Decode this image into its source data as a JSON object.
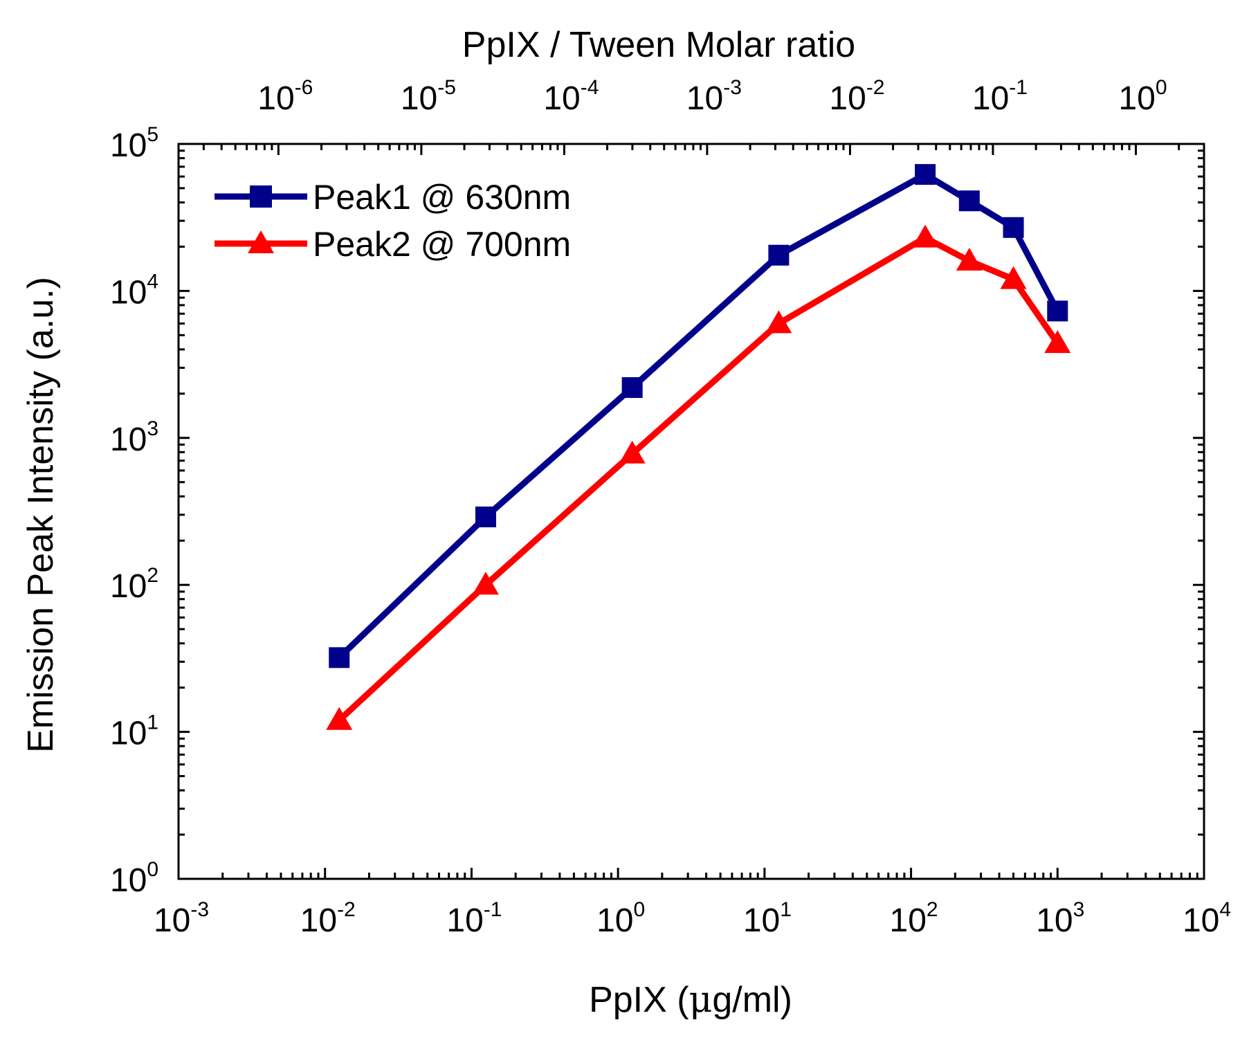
{
  "chart_data": {
    "type": "line",
    "x_scale": "log",
    "y_scale": "log",
    "xlabel_prefix": "PpIX (",
    "xlabel_mu": "μ",
    "xlabel_suffix": "g/ml)",
    "ylabel": "Emission Peak Intensity (a.u.)",
    "top_xlabel": "PpIX / Tween Molar ratio",
    "xlim": [
      0.001,
      10000
    ],
    "ylim": [
      1,
      100000
    ],
    "x_ticks": [
      {
        "base": "10",
        "exp": "-3"
      },
      {
        "base": "10",
        "exp": "-2"
      },
      {
        "base": "10",
        "exp": "-1"
      },
      {
        "base": "10",
        "exp": "0"
      },
      {
        "base": "10",
        "exp": "1"
      },
      {
        "base": "10",
        "exp": "2"
      },
      {
        "base": "10",
        "exp": "3"
      },
      {
        "base": "10",
        "exp": "4"
      }
    ],
    "y_ticks": [
      {
        "base": "10",
        "exp": "0"
      },
      {
        "base": "10",
        "exp": "1"
      },
      {
        "base": "10",
        "exp": "2"
      },
      {
        "base": "10",
        "exp": "3"
      },
      {
        "base": "10",
        "exp": "4"
      },
      {
        "base": "10",
        "exp": "5"
      }
    ],
    "top_xlim": [
      2e-07,
      3
    ],
    "top_x_ticks": [
      {
        "base": "10",
        "exp": "-6"
      },
      {
        "base": "10",
        "exp": "-5"
      },
      {
        "base": "10",
        "exp": "-4"
      },
      {
        "base": "10",
        "exp": "-3"
      },
      {
        "base": "10",
        "exp": "-2"
      },
      {
        "base": "10",
        "exp": "-1"
      },
      {
        "base": "10",
        "exp": "0"
      }
    ],
    "x": [
      0.0125,
      0.125,
      1.25,
      12.5,
      125,
      250,
      500,
      1000
    ],
    "series": [
      {
        "name": "Peak1 @ 630nm",
        "color": "#00008b",
        "marker": "square",
        "values": [
          32,
          290,
          2200,
          17500,
          62000,
          41000,
          27000,
          7300
        ]
      },
      {
        "name": "Peak2 @ 700nm",
        "color": "#ff0000",
        "marker": "triangle",
        "values": [
          12,
          100,
          780,
          6000,
          23000,
          16000,
          12000,
          4400
        ]
      }
    ],
    "legend_position": "top-left",
    "grid": false
  }
}
